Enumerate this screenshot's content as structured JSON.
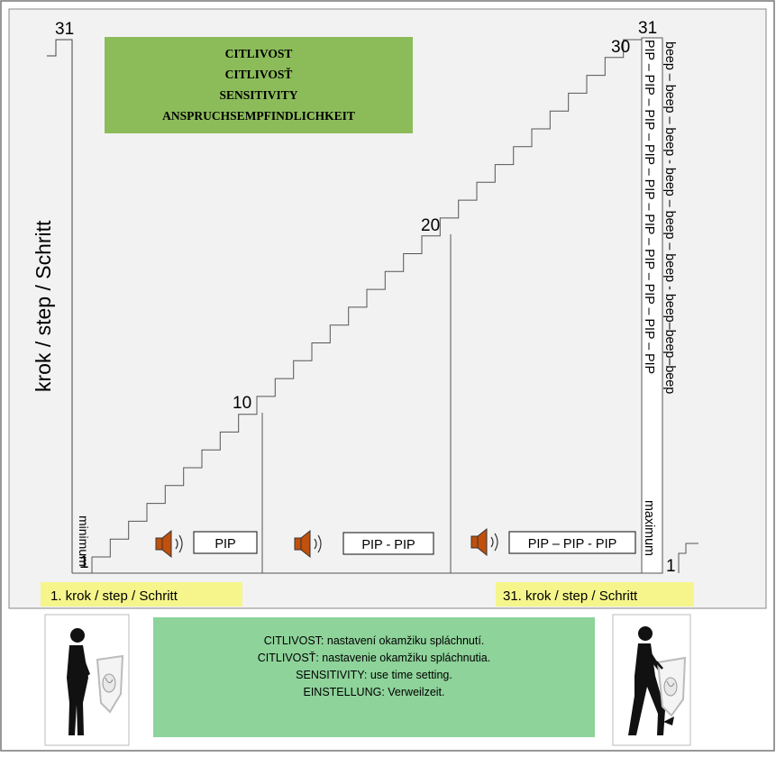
{
  "title_box": {
    "lines": [
      "CITLIVOST",
      "CITLIVOSŤ",
      "SENSITIVITY",
      "ANSPRUCHSEMPFINDLICHKEIT"
    ],
    "color": "#8cbc5a"
  },
  "axis": {
    "vertical_label": "krok / step / Schritt",
    "top_value": "31",
    "right_top_value": "31",
    "bottom_left_value": "1",
    "bottom_right_value": "1",
    "minimum_label": "minimum",
    "maximum_label": "maximum"
  },
  "stair": {
    "steps_total": 30,
    "markers": [
      {
        "step": 10,
        "label": "10"
      },
      {
        "step": 20,
        "label": "20"
      },
      {
        "step": 30,
        "label": "30"
      }
    ]
  },
  "sounds": {
    "zone1": "PIP",
    "zone2": "PIP - PIP",
    "zone3": "PIP – PIP - PIP",
    "speaker_color": "#c0500c",
    "vertical_pip": "PIP – PIP – PIP – PIP – PIP – PIP – PIP – PIP – PIP – PIP",
    "vertical_beep": "beep – beep – beep - beep – beep – beep - beep–beep–beep"
  },
  "footer": {
    "left_label": "1. krok / step / Schritt",
    "right_label": "31. krok / step / Schritt",
    "label_color": "#f5f58c"
  },
  "description": {
    "lines": [
      "CITLIVOST: nastavení okamžiku spláchnutí.",
      "CITLIVOSŤ: nastavenie okamžiku spláchnutia.",
      "SENSITIVITY: use time setting.",
      "EINSTELLUNG: Verweilzeit."
    ],
    "color": "#8ed39a"
  },
  "icons": {
    "left_figure": "standing-person-urinal-icon",
    "right_figure": "walking-person-urinal-flush-icon",
    "speaker": "speaker-icon"
  }
}
